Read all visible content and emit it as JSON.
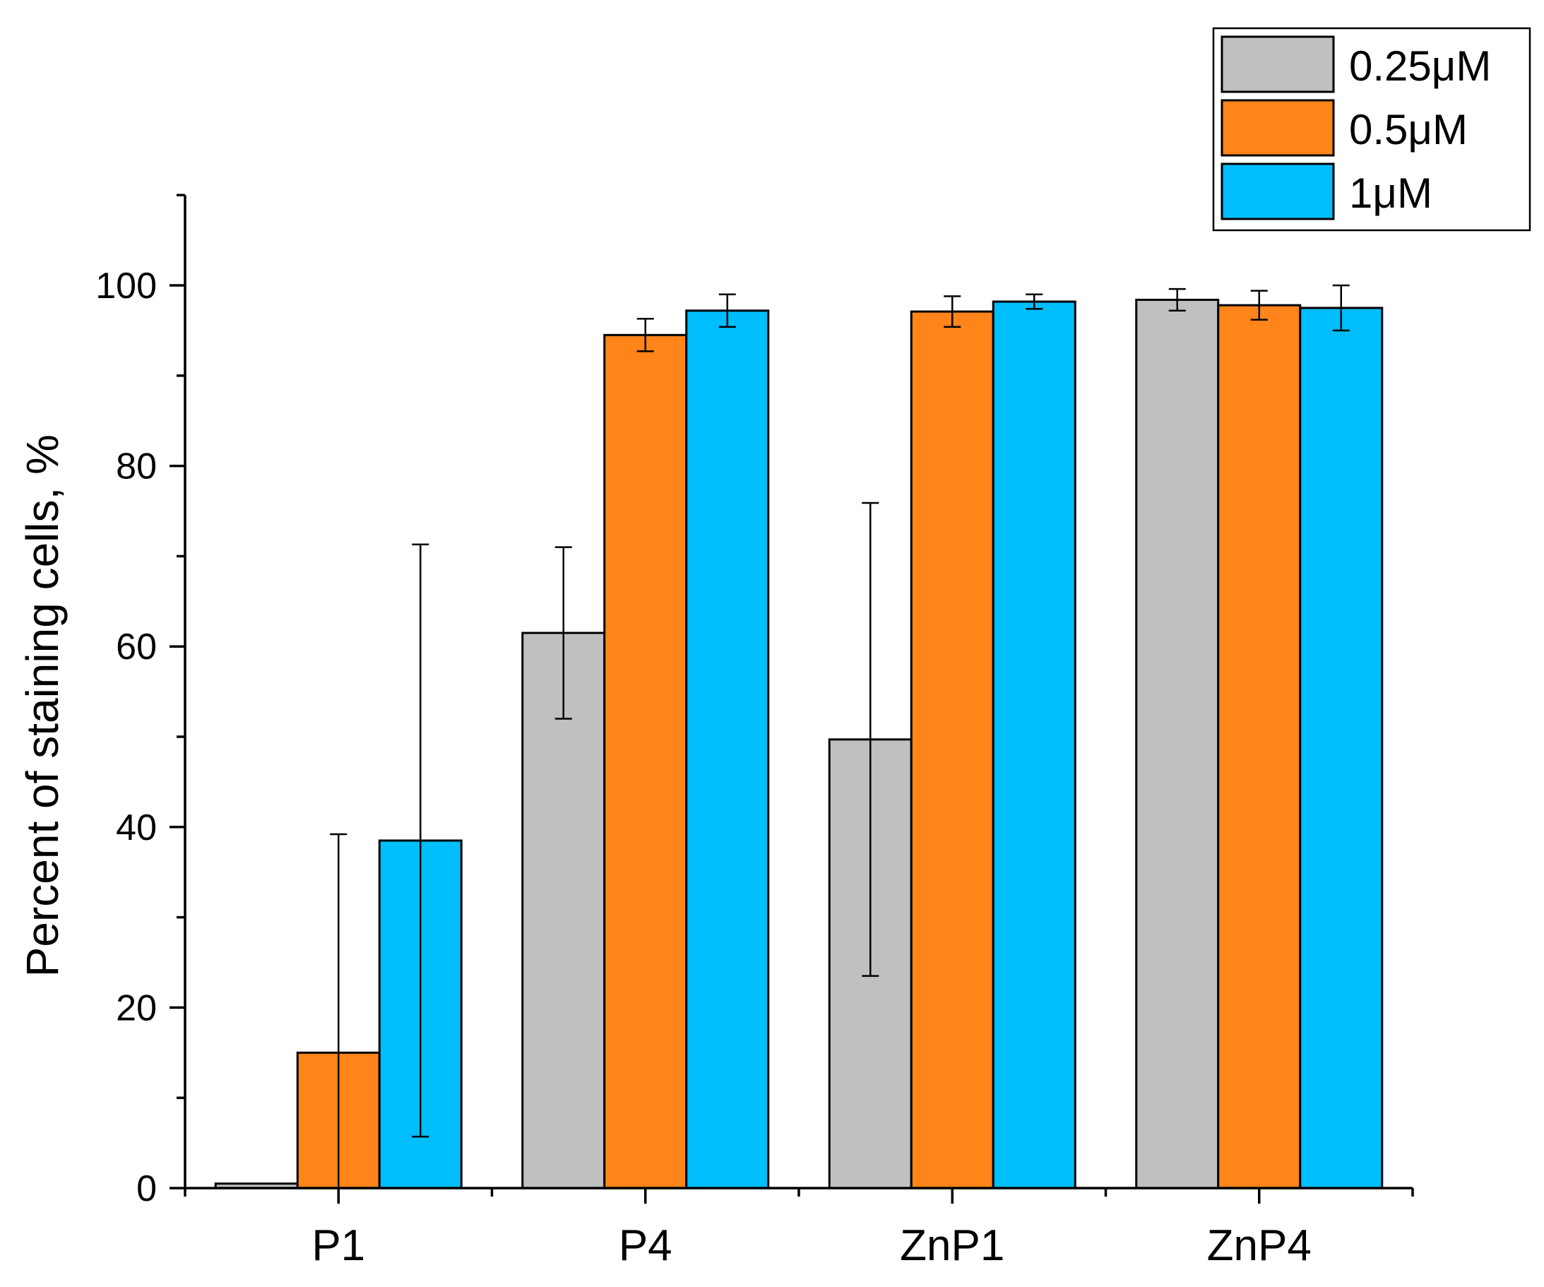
{
  "chart_data": {
    "type": "bar",
    "title": "",
    "xlabel": "",
    "ylabel": "Percent of staining cells, %",
    "categories": [
      "P1",
      "P4",
      "ZnP1",
      "ZnP4"
    ],
    "ylim": [
      0,
      110
    ],
    "yticks": [
      0,
      20,
      40,
      60,
      80,
      100
    ],
    "y_minor_step": 10,
    "legend_position": "top-right",
    "series": [
      {
        "name": "0.25μM",
        "color": "#c0c0c0",
        "values": [
          0.5,
          61.5,
          49.7,
          98.4
        ],
        "errors": [
          0,
          9.5,
          26.2,
          1.2
        ]
      },
      {
        "name": "0.5μM",
        "color": "#ff8419",
        "values": [
          15.0,
          94.5,
          97.1,
          97.8
        ],
        "errors": [
          24.2,
          1.8,
          1.7,
          1.6
        ]
      },
      {
        "name": "1μM",
        "color": "#00bdfb",
        "values": [
          38.5,
          97.2,
          98.2,
          97.5
        ],
        "errors": [
          32.8,
          1.8,
          0.8,
          2.5
        ]
      }
    ]
  }
}
